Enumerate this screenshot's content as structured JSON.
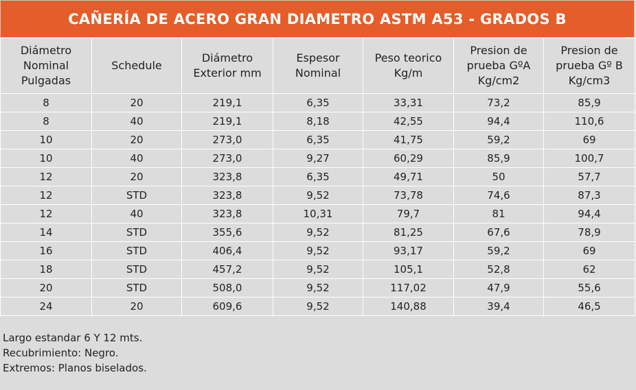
{
  "title": "CAÑERÍA DE ACERO GRAN DIAMETRO ASTM A53 - GRADOS B",
  "columns": [
    "Diámetro\nNominal\nPulgadas",
    "Schedule",
    "Diámetro\nExterior mm",
    "Espesor\nNominal",
    "Peso teorico\nKg/m",
    "Presion de\nprueba GºA\nKg/cm2",
    "Presion de\nprueba Gº B\nKg/cm3"
  ],
  "rows": [
    [
      "8",
      "20",
      "219,1",
      "6,35",
      "33,31",
      "73,2",
      "85,9"
    ],
    [
      "8",
      "40",
      "219,1",
      "8,18",
      "42,55",
      "94,4",
      "110,6"
    ],
    [
      "10",
      "20",
      "273,0",
      "6,35",
      "41,75",
      "59,2",
      "69"
    ],
    [
      "10",
      "40",
      "273,0",
      "9,27",
      "60,29",
      "85,9",
      "100,7"
    ],
    [
      "12",
      "20",
      "323,8",
      "6,35",
      "49,71",
      "50",
      "57,7"
    ],
    [
      "12",
      "STD",
      "323,8",
      "9,52",
      "73,78",
      "74,6",
      "87,3"
    ],
    [
      "12",
      "40",
      "323,8",
      "10,31",
      "79,7",
      "81",
      "94,4"
    ],
    [
      "14",
      "STD",
      "355,6",
      "9,52",
      "81,25",
      "67,6",
      "78,9"
    ],
    [
      "16",
      "STD",
      "406,4",
      "9,52",
      "93,17",
      "59,2",
      "69"
    ],
    [
      "18",
      "STD",
      "457,2",
      "9,52",
      "105,1",
      "52,8",
      "62"
    ],
    [
      "20",
      "STD",
      "508,0",
      "9,52",
      "117,02",
      "47,9",
      "55,6"
    ],
    [
      "24",
      "20",
      "609,6",
      "9,52",
      "140,88",
      "39,4",
      "46,5"
    ]
  ],
  "notes": [
    "Largo estandar 6 Y 12 mts.",
    "Recubrimiento: Negro.",
    "Extremos: Planos biselados."
  ],
  "colors": {
    "title_background": "#e45d2a",
    "title_text": "#ffffff",
    "table_background": "#dcdcdc",
    "grid_lines": "#ffffff"
  }
}
